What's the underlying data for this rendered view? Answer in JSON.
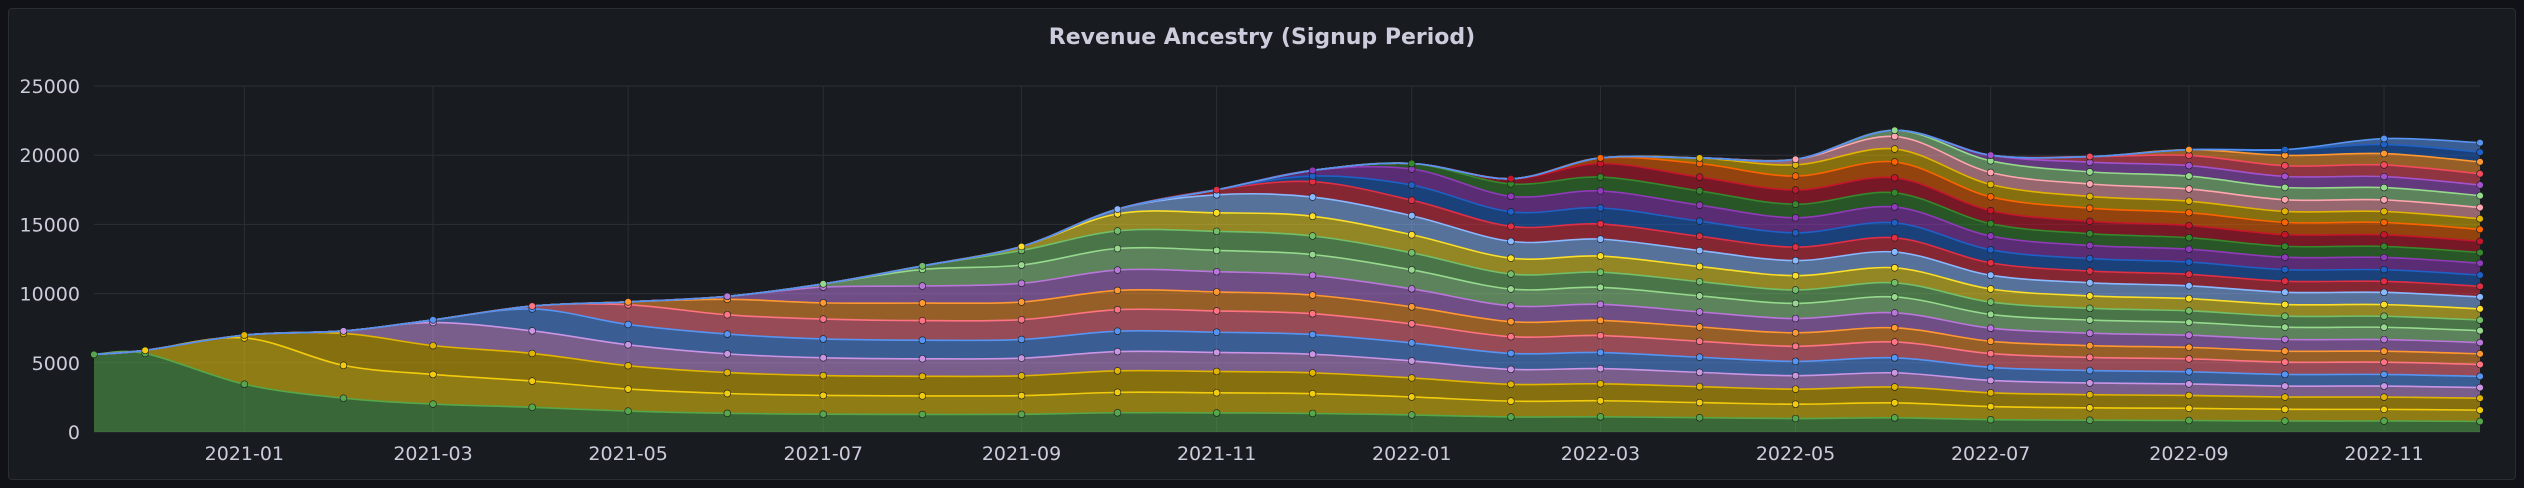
{
  "chart_data": {
    "type": "area",
    "stacked": true,
    "title": "Revenue Ancestry (Signup Period)",
    "xlabel": "",
    "ylabel": "",
    "ylim": [
      0,
      25000
    ],
    "y_ticks": [
      "0",
      "5000",
      "10000",
      "15000",
      "20000",
      "25000"
    ],
    "x_ticks": [
      "2021-01",
      "2021-03",
      "2021-05",
      "2021-07",
      "2021-09",
      "2021-11",
      "2022-01",
      "2022-03",
      "2022-05",
      "2022-07",
      "2022-09",
      "2022-11"
    ],
    "x": [
      "2020-11-15",
      "2020-12-01",
      "2021-01-01",
      "2021-02-01",
      "2021-03-01",
      "2021-04-01",
      "2021-05-01",
      "2021-06-01",
      "2021-07-01",
      "2021-08-01",
      "2021-09-01",
      "2021-10-01",
      "2021-11-01",
      "2021-12-01",
      "2022-01-01",
      "2022-02-01",
      "2022-03-01",
      "2022-04-01",
      "2022-05-01",
      "2022-06-01",
      "2022-07-01",
      "2022-08-01",
      "2022-09-01",
      "2022-10-01",
      "2022-11-01",
      "2022-12-01"
    ],
    "total": [
      5600,
      5900,
      7000,
      7300,
      8100,
      9100,
      9400,
      9800,
      10700,
      12000,
      13400,
      16100,
      17500,
      18900,
      19400,
      18300,
      19800,
      19800,
      19700,
      21800,
      20000,
      19900,
      20400,
      20400,
      21200,
      20900
    ],
    "series_count": 26,
    "grid": true,
    "legend": "none",
    "colors": [
      "#56a64b",
      "#f2cc0c",
      "#e0b400",
      "#ca95e5",
      "#5794f2",
      "#ff7383",
      "#ff9830",
      "#b877d9",
      "#96d98d",
      "#73bf69",
      "#fade2a",
      "#8ab8ff",
      "#e02f44",
      "#1f60c4",
      "#8f3bb8",
      "#37872d",
      "#c4162a",
      "#fa6400",
      "#e0b400",
      "#ffa6b0",
      "#96d98d",
      "#a352cc",
      "#f2495c",
      "#ff9830",
      "#1f60c4",
      "#5794f2"
    ]
  }
}
